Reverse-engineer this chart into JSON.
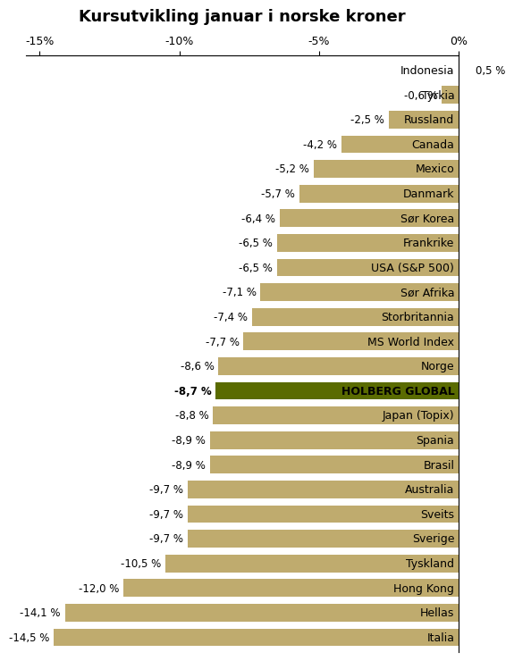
{
  "title": "Kursutvikling januar i norske kroner",
  "categories": [
    "Italia",
    "Hellas",
    "Hong Kong",
    "Tyskland",
    "Sverige",
    "Sveits",
    "Australia",
    "Brasil",
    "Spania",
    "Japan (Topix)",
    "HOLBERG GLOBAL",
    "Norge",
    "MS World Index",
    "Storbritannia",
    "Sør Afrika",
    "USA (S&P 500)",
    "Frankrike",
    "Sør Korea",
    "Danmark",
    "Mexico",
    "Canada",
    "Russland",
    "Tyrkia",
    "Indonesia"
  ],
  "values": [
    -14.5,
    -14.1,
    -12.0,
    -10.5,
    -9.7,
    -9.7,
    -9.7,
    -8.9,
    -8.9,
    -8.8,
    -8.7,
    -8.6,
    -7.7,
    -7.4,
    -7.1,
    -6.5,
    -6.5,
    -6.4,
    -5.7,
    -5.2,
    -4.2,
    -2.5,
    -0.6,
    0.5
  ],
  "labels": [
    "-14,5 %",
    "-14,1 %",
    "-12,0 %",
    "-10,5 %",
    "-9,7 %",
    "-9,7 %",
    "-9,7 %",
    "-8,9 %",
    "-8,9 %",
    "-8,8 %",
    "-8,7 %",
    "-8,6 %",
    "-7,7 %",
    "-7,4 %",
    "-7,1 %",
    "-6,5 %",
    "-6,5 %",
    "-6,4 %",
    "-5,7 %",
    "-5,2 %",
    "-4,2 %",
    "-2,5 %",
    "-0,6 %",
    "0,5 %"
  ],
  "bar_color_default": "#bfab6e",
  "bar_color_highlight": "#5a6b00",
  "xlim": [
    -15.5,
    0.0
  ],
  "xticks": [
    -15,
    -10,
    -5,
    0
  ],
  "xticklabels": [
    "-15%",
    "-10%",
    "-5%",
    "0%"
  ],
  "background_color": "#ffffff",
  "title_fontsize": 13,
  "tick_fontsize": 9,
  "label_fontsize": 8.5,
  "cat_fontsize": 9,
  "bar_height": 0.72
}
